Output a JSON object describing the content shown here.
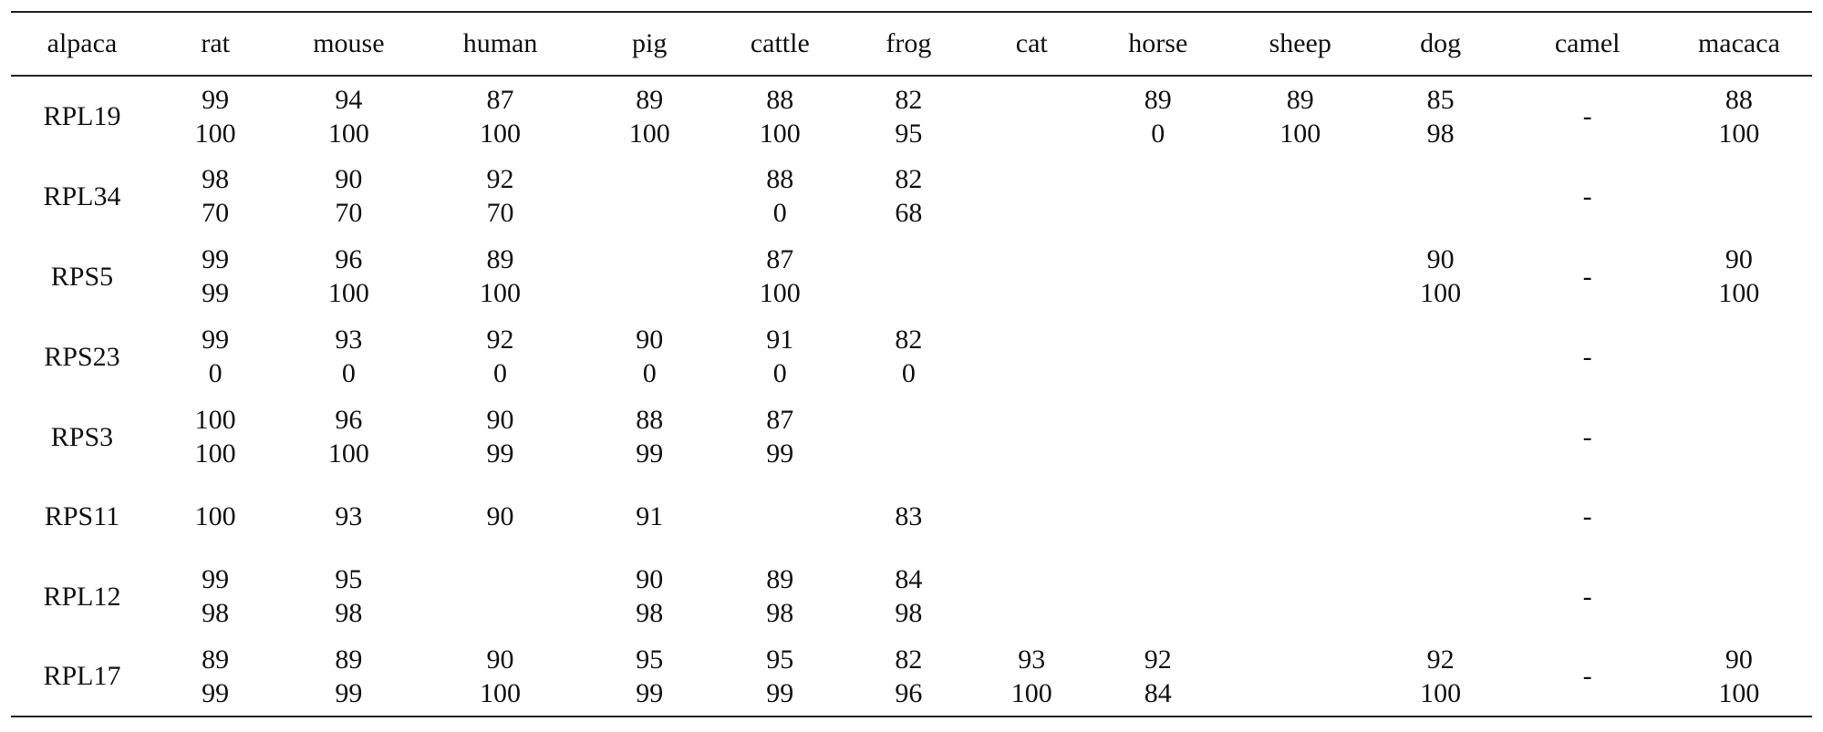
{
  "table": {
    "headers": [
      "alpaca",
      "rat",
      "mouse",
      "human",
      "pig",
      "cattle",
      "frog",
      "cat",
      "horse",
      "sheep",
      "dog",
      "camel",
      "macaca"
    ],
    "rows": [
      {
        "label": "RPL19",
        "cells": [
          [
            "99",
            "100"
          ],
          [
            "94",
            "100"
          ],
          [
            "87",
            "100"
          ],
          [
            "89",
            "100"
          ],
          [
            "88",
            "100"
          ],
          [
            "82",
            "95"
          ],
          [],
          [
            "89",
            "0"
          ],
          [
            "89",
            "100"
          ],
          [
            "85",
            "98"
          ],
          [
            "-"
          ],
          [
            "88",
            "100"
          ]
        ]
      },
      {
        "label": "RPL34",
        "cells": [
          [
            "98",
            "70"
          ],
          [
            "90",
            "70"
          ],
          [
            "92",
            "70"
          ],
          [],
          [
            "88",
            "0"
          ],
          [
            "82",
            "68"
          ],
          [],
          [],
          [],
          [],
          [
            "-"
          ],
          []
        ]
      },
      {
        "label": "RPS5",
        "cells": [
          [
            "99",
            "99"
          ],
          [
            "96",
            "100"
          ],
          [
            "89",
            "100"
          ],
          [],
          [
            "87",
            "100"
          ],
          [],
          [],
          [],
          [],
          [
            "90",
            "100"
          ],
          [
            "-"
          ],
          [
            "90",
            "100"
          ]
        ]
      },
      {
        "label": "RPS23",
        "cells": [
          [
            "99",
            "0"
          ],
          [
            "93",
            "0"
          ],
          [
            "92",
            "0"
          ],
          [
            "90",
            "0"
          ],
          [
            "91",
            "0"
          ],
          [
            "82",
            "0"
          ],
          [],
          [],
          [],
          [],
          [
            "-"
          ],
          []
        ]
      },
      {
        "label": "RPS3",
        "cells": [
          [
            "100",
            "100"
          ],
          [
            "96",
            "100"
          ],
          [
            "90",
            "99"
          ],
          [
            "88",
            "99"
          ],
          [
            "87",
            "99"
          ],
          [],
          [],
          [],
          [],
          [],
          [
            "-"
          ],
          []
        ]
      },
      {
        "label": "RPS11",
        "cells": [
          [
            "100"
          ],
          [
            "93"
          ],
          [
            "90"
          ],
          [
            "91"
          ],
          [],
          [
            "83"
          ],
          [],
          [],
          [],
          [],
          [
            "-"
          ],
          []
        ]
      },
      {
        "label": "RPL12",
        "cells": [
          [
            "99",
            "98"
          ],
          [
            "95",
            "98"
          ],
          [],
          [
            "90",
            "98"
          ],
          [
            "89",
            "98"
          ],
          [
            "84",
            "98"
          ],
          [],
          [],
          [],
          [],
          [
            "-"
          ],
          []
        ]
      },
      {
        "label": "RPL17",
        "cells": [
          [
            "89",
            "99"
          ],
          [
            "89",
            "99"
          ],
          [
            "90",
            "100"
          ],
          [
            "95",
            "99"
          ],
          [
            "95",
            "99"
          ],
          [
            "82",
            "96"
          ],
          [
            "93",
            "100"
          ],
          [
            "92",
            "84"
          ],
          [],
          [
            "92",
            "100"
          ],
          [
            "-"
          ],
          [
            "90",
            "100"
          ]
        ]
      }
    ]
  }
}
